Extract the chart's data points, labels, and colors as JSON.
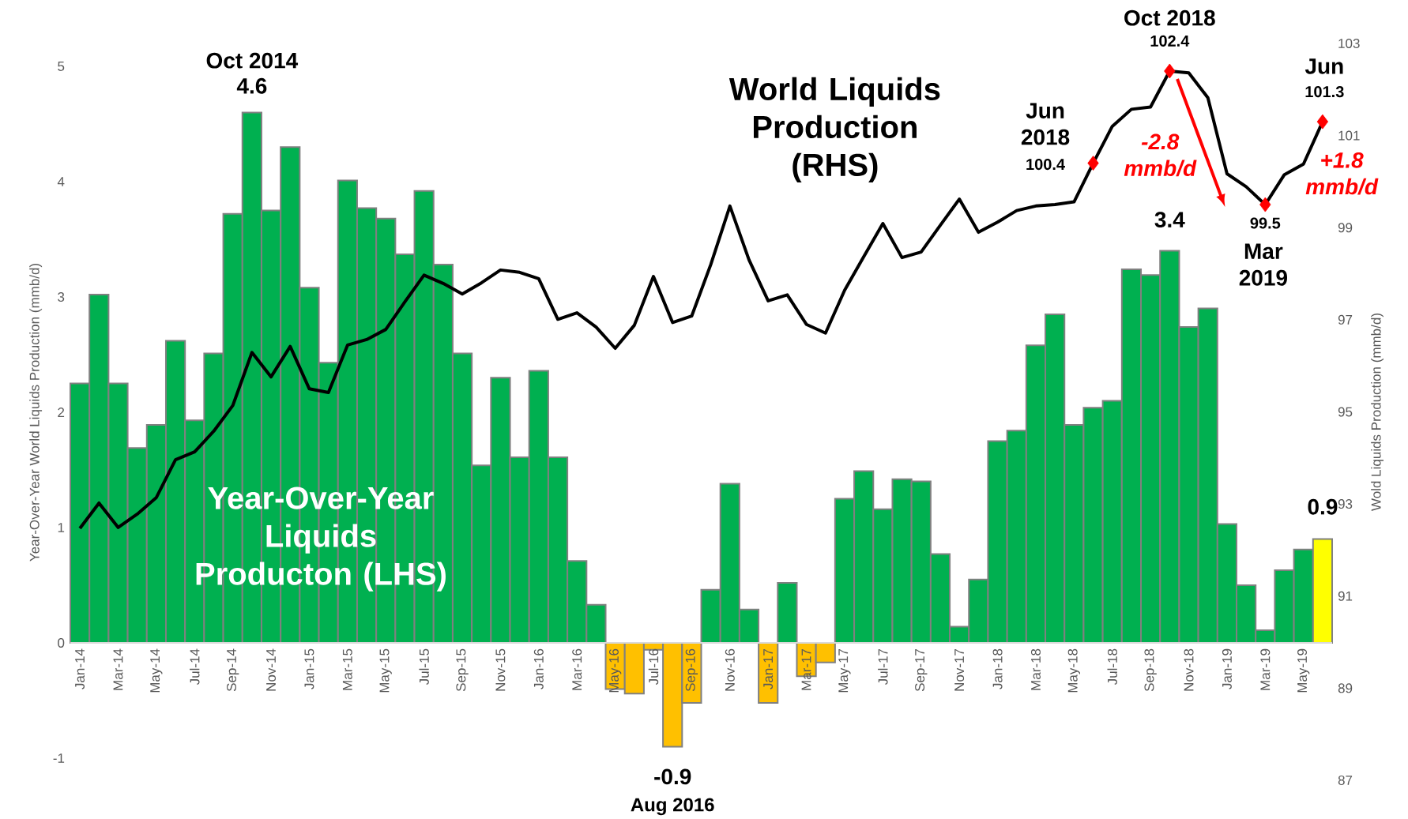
{
  "chart_data": {
    "type": "bar",
    "ylabel": "Year-Over-Year World Liquids Production (mmb/d)",
    "y2label": "Wold Liquids Production (mmb/d)",
    "categories": [
      "Jan-14",
      null,
      "Mar-14",
      null,
      "May-14",
      null,
      "Jul-14",
      null,
      "Sep-14",
      null,
      "Nov-14",
      null,
      "Jan-15",
      null,
      "Mar-15",
      null,
      "May-15",
      null,
      "Jul-15",
      null,
      "Sep-15",
      null,
      "Nov-15",
      null,
      "Jan-16",
      null,
      "Mar-16",
      null,
      "May-16",
      null,
      "Jul-16",
      null,
      "Sep-16",
      null,
      "Nov-16",
      null,
      "Jan-17",
      null,
      "Mar-17",
      null,
      "May-17",
      null,
      "Jul-17",
      null,
      "Sep-17",
      null,
      "Nov-17",
      null,
      "Jan-18",
      null,
      "Mar-18",
      null,
      "May-18",
      null,
      "Jul-18",
      null,
      "Sep-18",
      null,
      "Nov-18",
      null,
      "Jan-19",
      null,
      "Mar-19",
      null,
      "May-19",
      null
    ],
    "series": [
      {
        "values": [
          2.25,
          3.02,
          2.25,
          1.69,
          1.89,
          2.62,
          1.93,
          2.51,
          3.72,
          4.6,
          3.75,
          4.3,
          3.08,
          2.43,
          4.01,
          3.77,
          3.68,
          3.37,
          3.92,
          3.28,
          2.51,
          1.54,
          2.3,
          1.61,
          2.36,
          1.61,
          0.71,
          0.33,
          -0.4,
          -0.44,
          -0.06,
          -0.9,
          -0.52,
          0.46,
          1.38,
          0.29,
          -0.52,
          0.52,
          -0.29,
          -0.17,
          1.25,
          1.49,
          1.16,
          1.42,
          1.4,
          0.77,
          0.14,
          0.55,
          1.75,
          1.84,
          2.58,
          2.85,
          1.89,
          2.04,
          2.1,
          3.24,
          3.19,
          3.4,
          2.74,
          2.9,
          1.03,
          0.5,
          0.11,
          0.63,
          0.81,
          0.9
        ],
        "colors": [
          "#00b050",
          "#00b050",
          "#00b050",
          "#00b050",
          "#00b050",
          "#00b050",
          "#00b050",
          "#00b050",
          "#00b050",
          "#00b050",
          "#00b050",
          "#00b050",
          "#00b050",
          "#00b050",
          "#00b050",
          "#00b050",
          "#00b050",
          "#00b050",
          "#00b050",
          "#00b050",
          "#00b050",
          "#00b050",
          "#00b050",
          "#00b050",
          "#00b050",
          "#00b050",
          "#00b050",
          "#00b050",
          "#ffc000",
          "#ffc000",
          "#ffc000",
          "#ffc000",
          "#ffc000",
          "#00b050",
          "#00b050",
          "#00b050",
          "#ffc000",
          "#00b050",
          "#ffc000",
          "#ffc000",
          "#00b050",
          "#00b050",
          "#00b050",
          "#00b050",
          "#00b050",
          "#00b050",
          "#00b050",
          "#00b050",
          "#00b050",
          "#00b050",
          "#00b050",
          "#00b050",
          "#00b050",
          "#00b050",
          "#00b050",
          "#00b050",
          "#00b050",
          "#00b050",
          "#00b050",
          "#00b050",
          "#00b050",
          "#00b050",
          "#00b050",
          "#00b050",
          "#00b050",
          "#ffff00"
        ]
      },
      {
        "type": "line",
        "axis": "y2",
        "color": "#000000",
        "values": [
          92.47,
          93.02,
          92.49,
          92.78,
          93.14,
          93.96,
          94.13,
          94.58,
          95.14,
          96.29,
          95.76,
          96.42,
          95.5,
          95.42,
          96.45,
          96.57,
          96.79,
          97.39,
          97.97,
          97.79,
          97.56,
          97.8,
          98.08,
          98.03,
          97.89,
          97.01,
          97.15,
          96.84,
          96.38,
          96.88,
          97.94,
          96.94,
          97.08,
          98.2,
          99.47,
          98.3,
          97.41,
          97.54,
          96.9,
          96.71,
          97.64,
          98.37,
          99.09,
          98.35,
          98.47,
          99.05,
          99.62,
          98.9,
          99.12,
          99.37,
          99.47,
          99.5,
          99.56,
          100.4,
          101.2,
          101.57,
          101.62,
          102.4,
          102.36,
          101.82,
          100.17,
          99.89,
          99.5,
          100.15,
          100.38,
          101.3
        ]
      },
      {
        "type": "scatter",
        "axis": "y2",
        "color": "#ff0000",
        "marker": "diamond",
        "values": [
          null,
          null,
          null,
          null,
          null,
          null,
          null,
          null,
          null,
          null,
          null,
          null,
          null,
          null,
          null,
          null,
          null,
          null,
          null,
          null,
          null,
          null,
          null,
          null,
          null,
          null,
          null,
          null,
          null,
          null,
          null,
          null,
          null,
          null,
          null,
          null,
          null,
          null,
          null,
          null,
          null,
          null,
          null,
          null,
          null,
          null,
          null,
          null,
          null,
          null,
          null,
          null,
          null,
          100.4,
          null,
          null,
          null,
          102.4,
          null,
          null,
          null,
          null,
          99.5,
          null,
          null,
          101.3
        ]
      }
    ],
    "ylim": [
      -1,
      5
    ],
    "yticks": [
      -1,
      0,
      1,
      2,
      3,
      4,
      5
    ],
    "y2lim": [
      87,
      103
    ],
    "y2ticks": [
      87,
      89,
      91,
      93,
      95,
      97,
      99,
      101,
      103
    ],
    "annotations": [
      "Oct 2014",
      "4.6",
      "World Liquids Production (RHS)",
      "Oct 2018",
      "102.4",
      "Jun 2018",
      "100.4",
      "-2.8 mmb/d",
      "Jun",
      "101.3",
      "+1.8 mmb/d",
      "99.5",
      "Mar 2019",
      "3.4",
      "0.9",
      "Year-Over-Year Liquids Producton (LHS)",
      "-0.9",
      "Aug 2016"
    ]
  }
}
